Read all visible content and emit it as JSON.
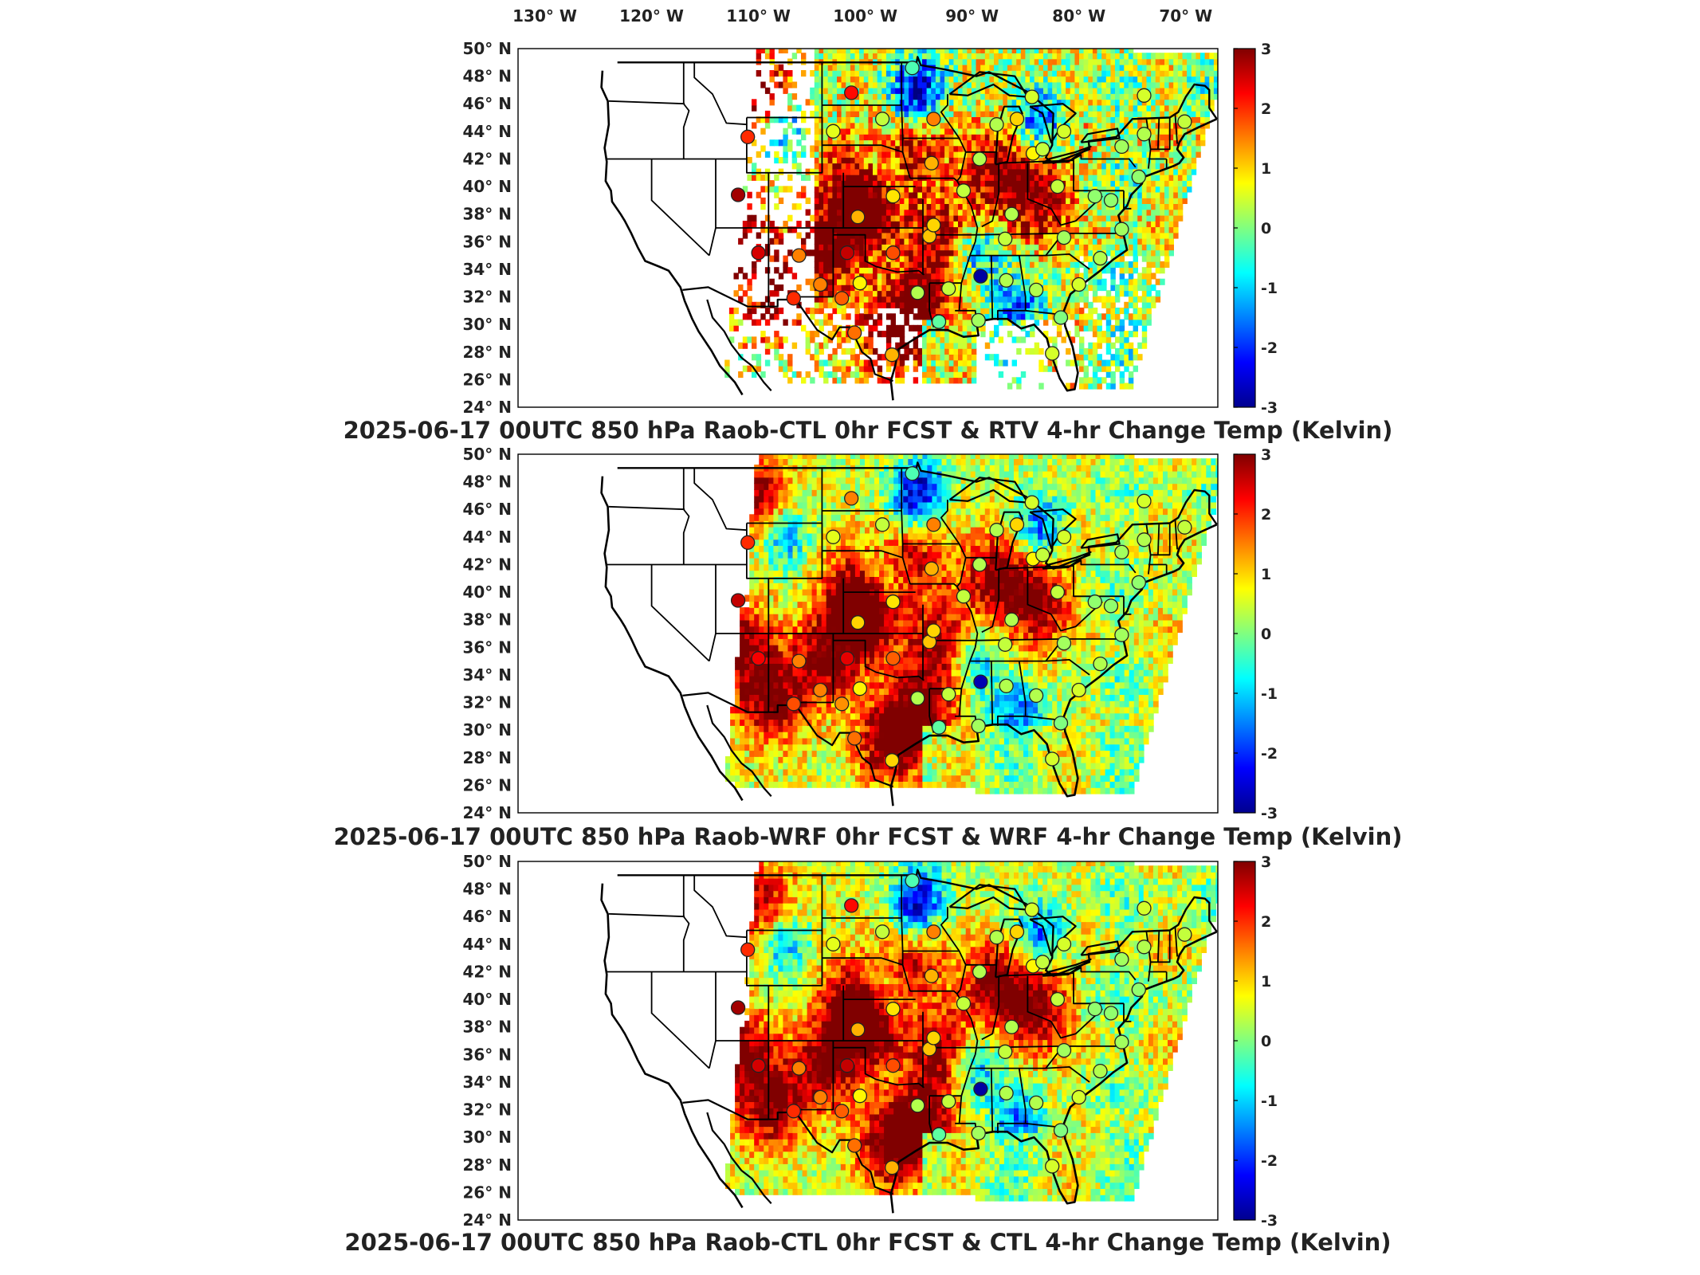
{
  "figure": {
    "lon_labels": [
      "130° W",
      "120° W",
      "110° W",
      "100° W",
      "90° W",
      "80° W",
      "70° W"
    ],
    "lon_values": [
      -130,
      -120,
      -110,
      -100,
      -90,
      -80,
      -70
    ],
    "lat_labels": [
      "50° N",
      "48° N",
      "46° N",
      "44° N",
      "42° N",
      "40° N",
      "38° N",
      "36° N",
      "34° N",
      "32° N",
      "30° N",
      "28° N",
      "26° N",
      "24° N"
    ],
    "lat_values": [
      50,
      48,
      46,
      44,
      42,
      40,
      38,
      36,
      34,
      32,
      30,
      28,
      26,
      24
    ],
    "lon_range": [
      -132.5,
      -67
    ],
    "lat_range": [
      24,
      50
    ],
    "colorbar": {
      "ticks": [
        "3",
        "2",
        "1",
        "0",
        "-1",
        "-2",
        "-3"
      ],
      "values": [
        3,
        2,
        1,
        0,
        -1,
        -2,
        -3
      ],
      "range": [
        -3,
        3
      ],
      "colormap": "jet",
      "colors": [
        "#00008f",
        "#0000ff",
        "#0080ff",
        "#00ffff",
        "#80ff80",
        "#ffff00",
        "#ff8000",
        "#ff0000",
        "#800000"
      ]
    }
  },
  "panels": [
    {
      "id": "rtv",
      "title": "2025-06-17 00UTC 850 hPa Raob-CTL 0hr FCST & RTV 4-hr Change Temp (Kelvin)",
      "field": "sparse",
      "chart_data": {
        "type": "heatmap",
        "clim": [
          -3,
          3
        ],
        "raob_points": [
          {
            "lon": -111.0,
            "lat": 43.6,
            "value": 2.0
          },
          {
            "lon": -111.9,
            "lat": 39.4,
            "value": 2.8
          },
          {
            "lon": -110.0,
            "lat": 35.2,
            "value": 2.5
          },
          {
            "lon": -106.2,
            "lat": 35.0,
            "value": 1.5
          },
          {
            "lon": -101.7,
            "lat": 35.2,
            "value": 2.6
          },
          {
            "lon": -106.7,
            "lat": 31.9,
            "value": 2.0
          },
          {
            "lon": -102.2,
            "lat": 31.9,
            "value": 1.7
          },
          {
            "lon": -104.2,
            "lat": 32.9,
            "value": 1.5
          },
          {
            "lon": -100.5,
            "lat": 33.0,
            "value": 0.8
          },
          {
            "lon": -101.0,
            "lat": 29.4,
            "value": 1.6
          },
          {
            "lon": -97.5,
            "lat": 27.8,
            "value": 1.2
          },
          {
            "lon": -95.1,
            "lat": 32.3,
            "value": 0.3
          },
          {
            "lon": -92.2,
            "lat": 32.6,
            "value": 0.4
          },
          {
            "lon": -89.2,
            "lat": 33.5,
            "value": -2.8
          },
          {
            "lon": -86.8,
            "lat": 33.2,
            "value": 0.3
          },
          {
            "lon": -93.1,
            "lat": 30.2,
            "value": -0.2
          },
          {
            "lon": -89.4,
            "lat": 30.3,
            "value": 0.2
          },
          {
            "lon": -81.7,
            "lat": 30.5,
            "value": 0.0
          },
          {
            "lon": -82.5,
            "lat": 27.9,
            "value": 0.5
          },
          {
            "lon": -84.0,
            "lat": 32.5,
            "value": 0.3
          },
          {
            "lon": -80.0,
            "lat": 32.9,
            "value": 0.5
          },
          {
            "lon": -86.9,
            "lat": 36.2,
            "value": 0.4
          },
          {
            "lon": -81.4,
            "lat": 36.3,
            "value": 0.2
          },
          {
            "lon": -78.0,
            "lat": 34.8,
            "value": 0.3
          },
          {
            "lon": -76.0,
            "lat": 36.9,
            "value": 0.2
          },
          {
            "lon": -97.4,
            "lat": 35.2,
            "value": 1.8
          },
          {
            "lon": -94.0,
            "lat": 36.4,
            "value": 1.1
          },
          {
            "lon": -97.4,
            "lat": 39.3,
            "value": 0.9
          },
          {
            "lon": -100.7,
            "lat": 37.8,
            "value": 1.2
          },
          {
            "lon": -93.6,
            "lat": 37.2,
            "value": 1.0
          },
          {
            "lon": -90.8,
            "lat": 39.7,
            "value": 0.4
          },
          {
            "lon": -86.3,
            "lat": 38.0,
            "value": 0.3
          },
          {
            "lon": -82.0,
            "lat": 40.0,
            "value": 0.4
          },
          {
            "lon": -78.5,
            "lat": 39.3,
            "value": 0.1
          },
          {
            "lon": -77.0,
            "lat": 39.0,
            "value": 0.1
          },
          {
            "lon": -93.8,
            "lat": 41.7,
            "value": 1.2
          },
          {
            "lon": -89.3,
            "lat": 42.0,
            "value": 0.3
          },
          {
            "lon": -84.3,
            "lat": 42.4,
            "value": 0.8
          },
          {
            "lon": -87.7,
            "lat": 44.5,
            "value": 0.3
          },
          {
            "lon": -83.4,
            "lat": 42.7,
            "value": 0.4
          },
          {
            "lon": -93.6,
            "lat": 44.9,
            "value": 1.5
          },
          {
            "lon": -98.4,
            "lat": 44.9,
            "value": 0.4
          },
          {
            "lon": -103.0,
            "lat": 44.0,
            "value": 0.6
          },
          {
            "lon": -101.3,
            "lat": 46.8,
            "value": 2.2
          },
          {
            "lon": -95.6,
            "lat": 48.6,
            "value": -0.3
          },
          {
            "lon": -85.8,
            "lat": 44.9,
            "value": 1.0
          },
          {
            "lon": -84.4,
            "lat": 46.5,
            "value": 0.5
          },
          {
            "lon": -81.4,
            "lat": 44.0,
            "value": 0.5
          },
          {
            "lon": -76.0,
            "lat": 42.9,
            "value": 0.2
          },
          {
            "lon": -73.9,
            "lat": 43.8,
            "value": 0.3
          },
          {
            "lon": -74.4,
            "lat": 40.7,
            "value": 0.1
          },
          {
            "lon": -70.1,
            "lat": 44.7,
            "value": 0.4
          },
          {
            "lon": -73.9,
            "lat": 46.6,
            "value": 0.5
          }
        ]
      }
    },
    {
      "id": "wrf",
      "title": "2025-06-17 00UTC 850 hPa Raob-WRF 0hr FCST & WRF 4-hr Change Temp (Kelvin)",
      "field": "full",
      "chart_data": {
        "type": "heatmap",
        "clim": [
          -3,
          3
        ],
        "raob_points": [
          {
            "lon": -111.0,
            "lat": 43.6,
            "value": 2.0
          },
          {
            "lon": -111.9,
            "lat": 39.4,
            "value": 2.6
          },
          {
            "lon": -110.0,
            "lat": 35.2,
            "value": 2.3
          },
          {
            "lon": -106.2,
            "lat": 35.0,
            "value": 1.5
          },
          {
            "lon": -101.7,
            "lat": 35.2,
            "value": 2.4
          },
          {
            "lon": -106.7,
            "lat": 31.9,
            "value": 1.8
          },
          {
            "lon": -102.2,
            "lat": 31.9,
            "value": 1.4
          },
          {
            "lon": -104.2,
            "lat": 32.9,
            "value": 1.5
          },
          {
            "lon": -100.5,
            "lat": 33.0,
            "value": 0.8
          },
          {
            "lon": -101.0,
            "lat": 29.4,
            "value": 1.6
          },
          {
            "lon": -97.5,
            "lat": 27.8,
            "value": 1.0
          },
          {
            "lon": -95.1,
            "lat": 32.3,
            "value": 0.3
          },
          {
            "lon": -92.2,
            "lat": 32.6,
            "value": 0.4
          },
          {
            "lon": -89.2,
            "lat": 33.5,
            "value": -2.7
          },
          {
            "lon": -86.8,
            "lat": 33.2,
            "value": 0.3
          },
          {
            "lon": -93.1,
            "lat": 30.2,
            "value": -0.2
          },
          {
            "lon": -89.4,
            "lat": 30.3,
            "value": 0.2
          },
          {
            "lon": -81.7,
            "lat": 30.5,
            "value": 0.0
          },
          {
            "lon": -82.5,
            "lat": 27.9,
            "value": 0.5
          },
          {
            "lon": -84.0,
            "lat": 32.5,
            "value": 0.3
          },
          {
            "lon": -80.0,
            "lat": 32.9,
            "value": 0.5
          },
          {
            "lon": -86.9,
            "lat": 36.2,
            "value": 0.4
          },
          {
            "lon": -81.4,
            "lat": 36.3,
            "value": 0.2
          },
          {
            "lon": -78.0,
            "lat": 34.8,
            "value": 0.3
          },
          {
            "lon": -76.0,
            "lat": 36.9,
            "value": 0.2
          },
          {
            "lon": -97.4,
            "lat": 35.2,
            "value": 1.7
          },
          {
            "lon": -94.0,
            "lat": 36.4,
            "value": 1.1
          },
          {
            "lon": -97.4,
            "lat": 39.3,
            "value": 0.9
          },
          {
            "lon": -100.7,
            "lat": 37.8,
            "value": 1.0
          },
          {
            "lon": -93.6,
            "lat": 37.2,
            "value": 1.0
          },
          {
            "lon": -90.8,
            "lat": 39.7,
            "value": 0.4
          },
          {
            "lon": -86.3,
            "lat": 38.0,
            "value": 0.3
          },
          {
            "lon": -82.0,
            "lat": 40.0,
            "value": 0.4
          },
          {
            "lon": -78.5,
            "lat": 39.3,
            "value": 0.1
          },
          {
            "lon": -77.0,
            "lat": 39.0,
            "value": 0.1
          },
          {
            "lon": -93.8,
            "lat": 41.7,
            "value": 1.2
          },
          {
            "lon": -89.3,
            "lat": 42.0,
            "value": 0.3
          },
          {
            "lon": -84.3,
            "lat": 42.4,
            "value": 0.8
          },
          {
            "lon": -87.7,
            "lat": 44.5,
            "value": 0.3
          },
          {
            "lon": -83.4,
            "lat": 42.7,
            "value": 0.4
          },
          {
            "lon": -93.6,
            "lat": 44.9,
            "value": 1.5
          },
          {
            "lon": -98.4,
            "lat": 44.9,
            "value": 0.4
          },
          {
            "lon": -103.0,
            "lat": 44.0,
            "value": 0.6
          },
          {
            "lon": -101.3,
            "lat": 46.8,
            "value": 1.5
          },
          {
            "lon": -95.6,
            "lat": 48.6,
            "value": -0.3
          },
          {
            "lon": -85.8,
            "lat": 44.9,
            "value": 1.0
          },
          {
            "lon": -84.4,
            "lat": 46.5,
            "value": 0.5
          },
          {
            "lon": -81.4,
            "lat": 44.0,
            "value": 0.5
          },
          {
            "lon": -76.0,
            "lat": 42.9,
            "value": 0.2
          },
          {
            "lon": -73.9,
            "lat": 43.8,
            "value": 0.3
          },
          {
            "lon": -74.4,
            "lat": 40.7,
            "value": 0.1
          },
          {
            "lon": -70.1,
            "lat": 44.7,
            "value": 0.4
          },
          {
            "lon": -73.9,
            "lat": 46.6,
            "value": 0.5
          }
        ]
      }
    },
    {
      "id": "ctl",
      "title": "2025-06-17 00UTC 850 hPa Raob-CTL 0hr FCST & CTL 4-hr Change Temp (Kelvin)",
      "field": "full",
      "chart_data": {
        "type": "heatmap",
        "clim": [
          -3,
          3
        ],
        "raob_points": [
          {
            "lon": -111.0,
            "lat": 43.6,
            "value": 2.0
          },
          {
            "lon": -111.9,
            "lat": 39.4,
            "value": 2.8
          },
          {
            "lon": -110.0,
            "lat": 35.2,
            "value": 2.5
          },
          {
            "lon": -106.2,
            "lat": 35.0,
            "value": 1.5
          },
          {
            "lon": -101.7,
            "lat": 35.2,
            "value": 2.6
          },
          {
            "lon": -106.7,
            "lat": 31.9,
            "value": 2.0
          },
          {
            "lon": -102.2,
            "lat": 31.9,
            "value": 1.7
          },
          {
            "lon": -104.2,
            "lat": 32.9,
            "value": 1.5
          },
          {
            "lon": -100.5,
            "lat": 33.0,
            "value": 0.8
          },
          {
            "lon": -101.0,
            "lat": 29.4,
            "value": 1.6
          },
          {
            "lon": -97.5,
            "lat": 27.8,
            "value": 1.2
          },
          {
            "lon": -95.1,
            "lat": 32.3,
            "value": 0.3
          },
          {
            "lon": -92.2,
            "lat": 32.6,
            "value": 0.4
          },
          {
            "lon": -89.2,
            "lat": 33.5,
            "value": -2.8
          },
          {
            "lon": -86.8,
            "lat": 33.2,
            "value": 0.3
          },
          {
            "lon": -93.1,
            "lat": 30.2,
            "value": -0.2
          },
          {
            "lon": -89.4,
            "lat": 30.3,
            "value": 0.2
          },
          {
            "lon": -81.7,
            "lat": 30.5,
            "value": 0.0
          },
          {
            "lon": -82.5,
            "lat": 27.9,
            "value": 0.5
          },
          {
            "lon": -84.0,
            "lat": 32.5,
            "value": 0.3
          },
          {
            "lon": -80.0,
            "lat": 32.9,
            "value": 0.5
          },
          {
            "lon": -86.9,
            "lat": 36.2,
            "value": 0.4
          },
          {
            "lon": -81.4,
            "lat": 36.3,
            "value": 0.2
          },
          {
            "lon": -78.0,
            "lat": 34.8,
            "value": 0.3
          },
          {
            "lon": -76.0,
            "lat": 36.9,
            "value": 0.2
          },
          {
            "lon": -97.4,
            "lat": 35.2,
            "value": 1.8
          },
          {
            "lon": -94.0,
            "lat": 36.4,
            "value": 1.1
          },
          {
            "lon": -97.4,
            "lat": 39.3,
            "value": 0.9
          },
          {
            "lon": -100.7,
            "lat": 37.8,
            "value": 1.2
          },
          {
            "lon": -93.6,
            "lat": 37.2,
            "value": 1.0
          },
          {
            "lon": -90.8,
            "lat": 39.7,
            "value": 0.4
          },
          {
            "lon": -86.3,
            "lat": 38.0,
            "value": 0.3
          },
          {
            "lon": -82.0,
            "lat": 40.0,
            "value": 0.4
          },
          {
            "lon": -78.5,
            "lat": 39.3,
            "value": 0.1
          },
          {
            "lon": -77.0,
            "lat": 39.0,
            "value": 0.1
          },
          {
            "lon": -93.8,
            "lat": 41.7,
            "value": 1.2
          },
          {
            "lon": -89.3,
            "lat": 42.0,
            "value": 0.3
          },
          {
            "lon": -84.3,
            "lat": 42.4,
            "value": 0.8
          },
          {
            "lon": -87.7,
            "lat": 44.5,
            "value": 0.3
          },
          {
            "lon": -83.4,
            "lat": 42.7,
            "value": 0.4
          },
          {
            "lon": -93.6,
            "lat": 44.9,
            "value": 1.5
          },
          {
            "lon": -98.4,
            "lat": 44.9,
            "value": 0.4
          },
          {
            "lon": -103.0,
            "lat": 44.0,
            "value": 0.6
          },
          {
            "lon": -101.3,
            "lat": 46.8,
            "value": 2.2
          },
          {
            "lon": -95.6,
            "lat": 48.6,
            "value": -0.3
          },
          {
            "lon": -85.8,
            "lat": 44.9,
            "value": 1.0
          },
          {
            "lon": -84.4,
            "lat": 46.5,
            "value": 0.5
          },
          {
            "lon": -81.4,
            "lat": 44.0,
            "value": 0.5
          },
          {
            "lon": -76.0,
            "lat": 42.9,
            "value": 0.2
          },
          {
            "lon": -73.9,
            "lat": 43.8,
            "value": 0.3
          },
          {
            "lon": -74.4,
            "lat": 40.7,
            "value": 0.1
          },
          {
            "lon": -70.1,
            "lat": 44.7,
            "value": 0.4
          },
          {
            "lon": -73.9,
            "lat": 46.6,
            "value": 0.5
          }
        ]
      }
    }
  ]
}
